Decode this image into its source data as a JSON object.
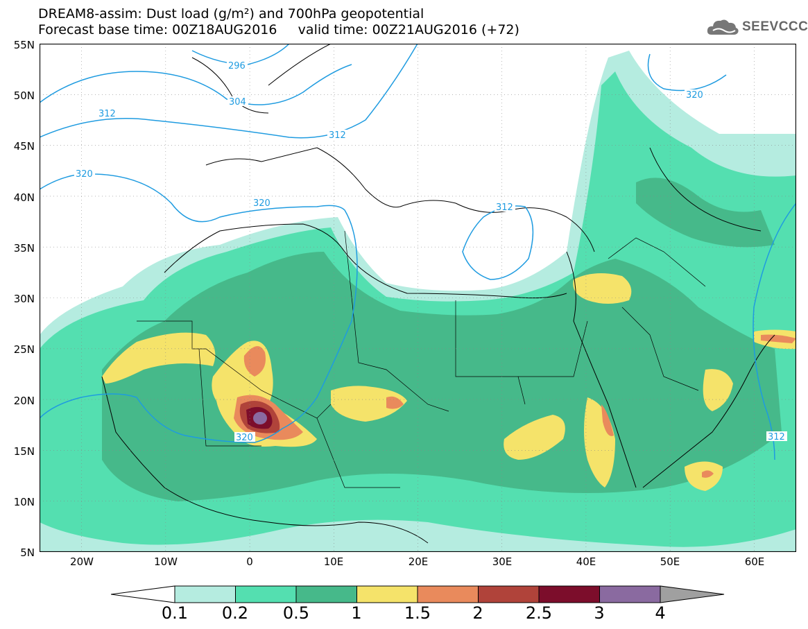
{
  "header": {
    "title_line1": "DREAM8-assim: Dust load (g/m²) and 700hPa geopotential",
    "title_line2": "Forecast base time: 00Z18AUG2016     valid time: 00Z21AUG2016 (+72)"
  },
  "logo": {
    "text": "SEEVCCC",
    "icon": "cloud-logo-icon"
  },
  "map": {
    "region": "North Africa, Europe, Middle East",
    "lon_range": [
      -25,
      65
    ],
    "lat_range": [
      5,
      55
    ],
    "lat_labels": [
      "55N",
      "50N",
      "45N",
      "40N",
      "35N",
      "30N",
      "25N",
      "20N",
      "15N",
      "10N",
      "5N"
    ],
    "lon_labels": [
      "20W",
      "10W",
      "0",
      "10E",
      "20E",
      "30E",
      "40E",
      "50E",
      "60E"
    ],
    "contour_labels": [
      "296",
      "304",
      "312",
      "312",
      "320",
      "320",
      "312",
      "320",
      "312",
      "320"
    ],
    "contour_color": "#1e9be0"
  },
  "colorbar": {
    "labels": [
      "0.1",
      "0.2",
      "0.5",
      "1",
      "1.5",
      "2",
      "2.5",
      "3",
      "4"
    ],
    "colors": [
      "#b5ece0",
      "#54dfb0",
      "#46b98a",
      "#f5e36a",
      "#e98a5c",
      "#b0433a",
      "#7c0d2b",
      "#8a6aa0"
    ]
  }
}
